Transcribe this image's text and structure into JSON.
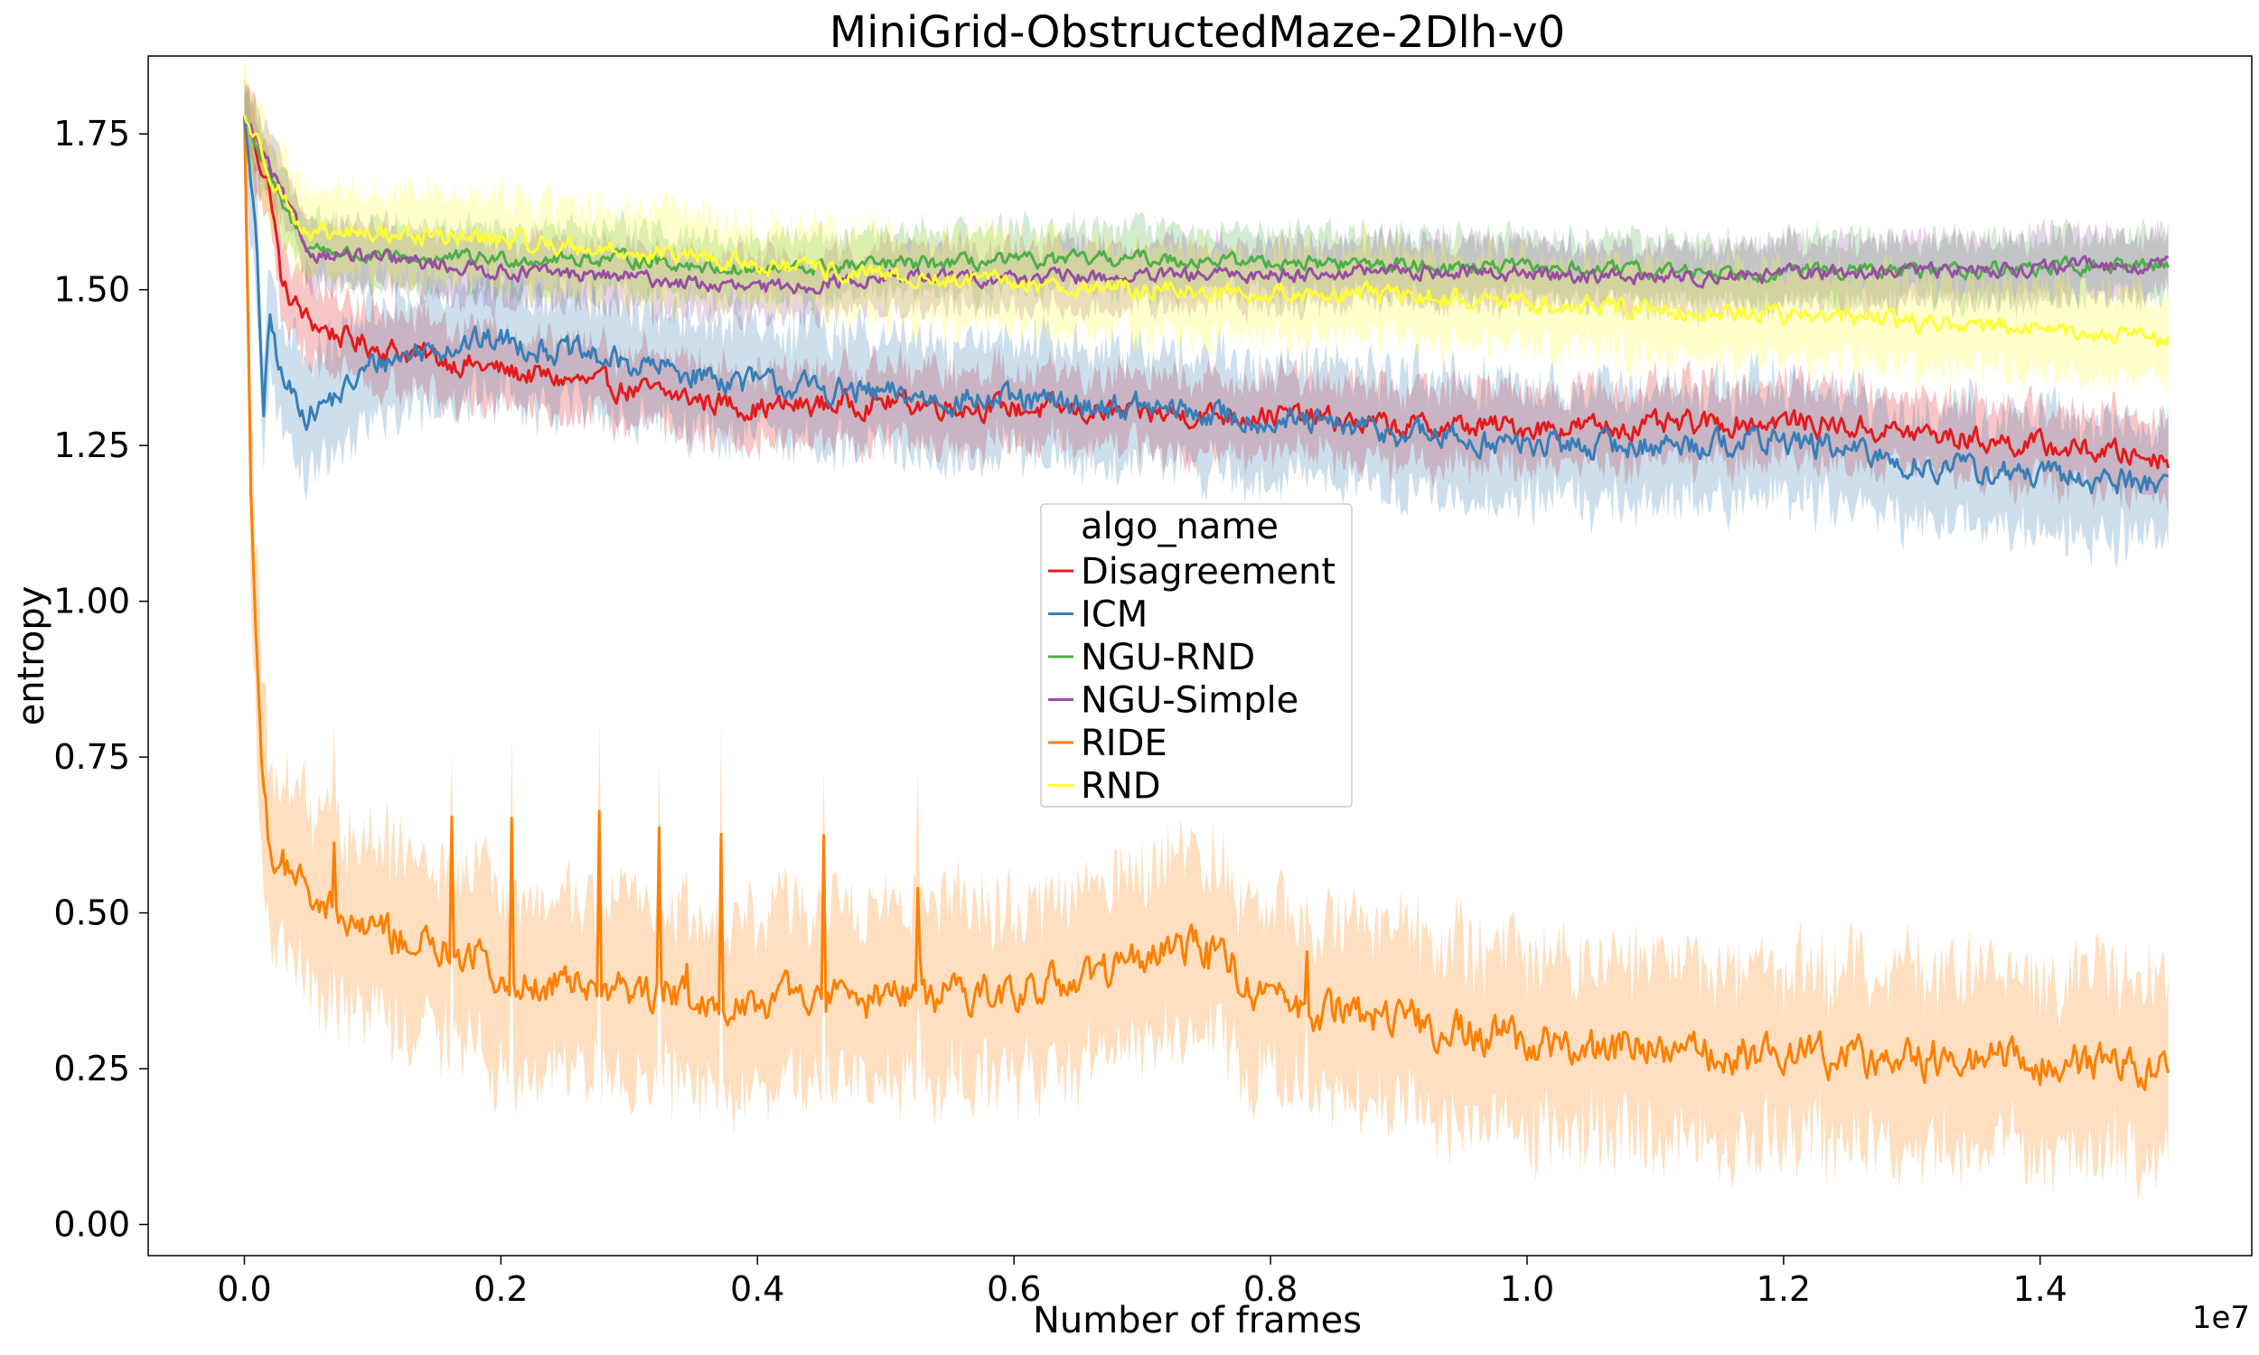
{
  "chart_data": {
    "type": "line",
    "title": "MiniGrid-ObstructedMaze-2Dlh-v0",
    "xlabel": "Number of frames",
    "ylabel": "entropy",
    "x_offset_label": "1e7",
    "xlim": [
      -0.075,
      1.565
    ],
    "ylim": [
      -0.05,
      1.875
    ],
    "x_ticks": [
      0.0,
      0.2,
      0.4,
      0.6,
      0.8,
      1.0,
      1.2,
      1.4
    ],
    "x_tick_labels": [
      "0.0",
      "0.2",
      "0.4",
      "0.6",
      "0.8",
      "1.0",
      "1.2",
      "1.4"
    ],
    "y_ticks": [
      0.0,
      0.25,
      0.5,
      0.75,
      1.0,
      1.25,
      1.5,
      1.75
    ],
    "y_tick_labels": [
      "0.00",
      "0.25",
      "0.50",
      "0.75",
      "1.00",
      "1.25",
      "1.50",
      "1.75"
    ],
    "grid": false,
    "legend": {
      "title": "algo_name",
      "placement": "center"
    },
    "series": [
      {
        "name": "Disagreement",
        "color": "#e41a1c",
        "x": [
          0,
          0.02,
          0.03,
          0.05,
          0.08,
          0.1,
          0.15,
          0.2,
          0.3,
          0.4,
          0.5,
          0.6,
          0.7,
          0.8,
          0.9,
          1.0,
          1.1,
          1.2,
          1.3,
          1.4,
          1.5
        ],
        "y": [
          1.78,
          1.66,
          1.5,
          1.45,
          1.42,
          1.41,
          1.39,
          1.37,
          1.34,
          1.31,
          1.32,
          1.31,
          1.3,
          1.3,
          1.28,
          1.28,
          1.28,
          1.29,
          1.27,
          1.25,
          1.23
        ],
        "band": 0.06,
        "noise": 0.035
      },
      {
        "name": "ICM",
        "color": "#377eb8",
        "x": [
          0,
          0.01,
          0.015,
          0.02,
          0.03,
          0.05,
          0.08,
          0.1,
          0.15,
          0.2,
          0.3,
          0.4,
          0.5,
          0.6,
          0.7,
          0.8,
          0.9,
          1.0,
          1.1,
          1.2,
          1.3,
          1.4,
          1.5
        ],
        "y": [
          1.78,
          1.55,
          1.3,
          1.45,
          1.35,
          1.3,
          1.34,
          1.38,
          1.41,
          1.42,
          1.38,
          1.35,
          1.33,
          1.32,
          1.31,
          1.29,
          1.27,
          1.25,
          1.25,
          1.26,
          1.22,
          1.2,
          1.19
        ],
        "band": 0.09,
        "noise": 0.04
      },
      {
        "name": "NGU-RND",
        "color": "#4daf4a",
        "x": [
          0,
          0.03,
          0.05,
          0.1,
          0.2,
          0.3,
          0.4,
          0.5,
          0.7,
          0.9,
          1.1,
          1.3,
          1.5
        ],
        "y": [
          1.78,
          1.63,
          1.57,
          1.55,
          1.55,
          1.55,
          1.53,
          1.54,
          1.55,
          1.54,
          1.53,
          1.53,
          1.54
        ],
        "band": 0.05,
        "noise": 0.022
      },
      {
        "name": "NGU-Simple",
        "color": "#984ea3",
        "x": [
          0,
          0.03,
          0.05,
          0.1,
          0.2,
          0.3,
          0.4,
          0.5,
          0.7,
          0.9,
          1.1,
          1.3,
          1.5
        ],
        "y": [
          1.78,
          1.65,
          1.56,
          1.55,
          1.53,
          1.52,
          1.5,
          1.52,
          1.52,
          1.53,
          1.52,
          1.53,
          1.54
        ],
        "band": 0.05,
        "noise": 0.022
      },
      {
        "name": "RIDE",
        "color": "#ff7f00",
        "x": [
          0,
          0.005,
          0.01,
          0.015,
          0.02,
          0.04,
          0.06,
          0.1,
          0.15,
          0.2,
          0.3,
          0.4,
          0.5,
          0.6,
          0.7,
          0.75,
          0.8,
          0.85,
          0.9,
          1.0,
          1.1,
          1.2,
          1.3,
          1.4,
          1.5
        ],
        "y": [
          1.78,
          1.2,
          0.9,
          0.68,
          0.6,
          0.55,
          0.5,
          0.47,
          0.44,
          0.4,
          0.38,
          0.36,
          0.36,
          0.38,
          0.42,
          0.45,
          0.36,
          0.34,
          0.33,
          0.29,
          0.28,
          0.27,
          0.27,
          0.26,
          0.25
        ],
        "band": 0.14,
        "noise": 0.06
      },
      {
        "name": "RND",
        "color": "#ffff33",
        "x": [
          0,
          0.03,
          0.05,
          0.08,
          0.1,
          0.2,
          0.3,
          0.4,
          0.5,
          0.7,
          0.9,
          1.1,
          1.3,
          1.5
        ],
        "y": [
          1.78,
          1.65,
          1.58,
          1.59,
          1.59,
          1.58,
          1.56,
          1.54,
          1.52,
          1.5,
          1.49,
          1.47,
          1.45,
          1.42
        ],
        "band": 0.07,
        "noise": 0.028
      }
    ]
  }
}
